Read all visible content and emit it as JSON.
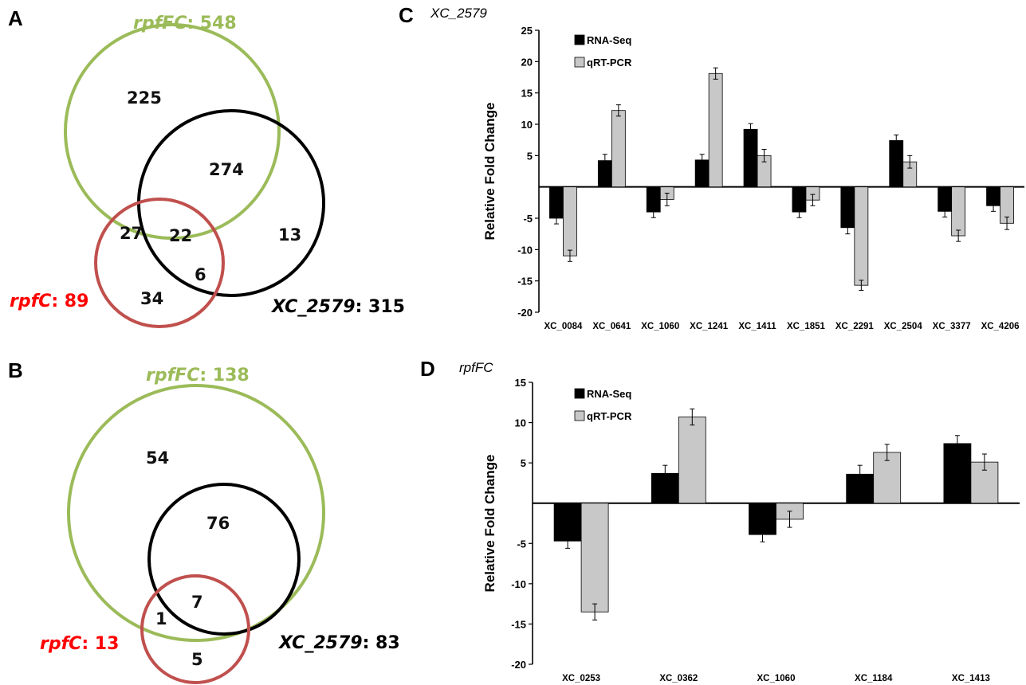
{
  "panels": {
    "A": "A",
    "B": "B",
    "C": "C",
    "D": "D"
  },
  "venn_A": {
    "rpfFC": {
      "name": "rpfFC",
      "total": ": 548"
    },
    "rpfC": {
      "name": "rpfC",
      "total": ": 89"
    },
    "xc2579": {
      "name": "XC_2579",
      "total": ": 315"
    },
    "regions": {
      "rpfFC_only": "225",
      "rpfFC_xc": "274",
      "rpfFC_rpfC": "27",
      "all_three": "22",
      "xc_only": "13",
      "rpfC_xc": "6",
      "rpfC_only": "34"
    },
    "colors": {
      "rpfFC": "#9bbb59",
      "rpfC": "#c0504d",
      "xc2579": "#000000",
      "rpfC_label": "#ff0000"
    }
  },
  "venn_B": {
    "rpfFC": {
      "name": "rpfFC",
      "total": ": 138"
    },
    "rpfC": {
      "name": "rpfC",
      "total": ": 13"
    },
    "xc2579": {
      "name": "XC_2579",
      "total": ": 83"
    },
    "regions": {
      "rpfFC_only": "54",
      "rpfFC_xc": "76",
      "rpfFC_rpfC": "1",
      "all_three": "7",
      "rpfC_only": "5"
    },
    "colors": {
      "rpfFC": "#9bbb59",
      "rpfC": "#c0504d",
      "xc2579": "#000000",
      "rpfC_label": "#ff0000"
    }
  },
  "chart_data": [
    {
      "panel": "C",
      "type": "bar",
      "title": "XC_2579",
      "xlabel": "",
      "ylabel": "Relative Fold Change",
      "ylim": [
        -20,
        25
      ],
      "yticks": [
        25,
        20,
        15,
        10,
        5,
        -5,
        -10,
        -15,
        -20
      ],
      "categories": [
        "XC_0084",
        "XC_0641",
        "XC_1060",
        "XC_1241",
        "XC_1411",
        "XC_1851",
        "XC_2291",
        "XC_2504",
        "XC_3377",
        "XC_4206"
      ],
      "series": [
        {
          "name": "RNA-Seq",
          "color": "#000000",
          "values": [
            -5.0,
            4.2,
            -4.0,
            4.3,
            9.2,
            -4.0,
            -6.5,
            7.4,
            -3.9,
            -3.0
          ],
          "errors": [
            0.9,
            1.0,
            0.9,
            0.9,
            0.9,
            0.9,
            1.0,
            0.9,
            0.9,
            0.9
          ]
        },
        {
          "name": "qRT-PCR",
          "color": "#c8c8c8",
          "values": [
            -11.0,
            12.2,
            -2.0,
            18.1,
            5.0,
            -2.1,
            -15.7,
            4.0,
            -7.8,
            -5.8
          ],
          "errors": [
            0.9,
            0.9,
            1.0,
            0.9,
            1.0,
            0.9,
            0.8,
            1.0,
            0.9,
            1.0
          ]
        }
      ],
      "legend": "top-left"
    },
    {
      "panel": "D",
      "type": "bar",
      "title": "rpfFC",
      "xlabel": "",
      "ylabel": "Relative Fold Change",
      "ylim": [
        -20,
        15
      ],
      "yticks": [
        15,
        10,
        5,
        -5,
        -10,
        -15,
        -20
      ],
      "categories": [
        "XC_0253",
        "XC_0362",
        "XC_1060",
        "XC_1184",
        "XC_1413"
      ],
      "series": [
        {
          "name": "RNA-Seq",
          "color": "#000000",
          "values": [
            -4.7,
            3.7,
            -3.9,
            3.6,
            7.4
          ],
          "errors": [
            0.9,
            1.0,
            0.9,
            1.1,
            1.0
          ]
        },
        {
          "name": "qRT-PCR",
          "color": "#c8c8c8",
          "values": [
            -13.5,
            10.7,
            -2.0,
            6.3,
            5.1
          ],
          "errors": [
            1.0,
            1.0,
            1.0,
            1.0,
            1.0
          ]
        }
      ],
      "legend": "top-left"
    }
  ]
}
